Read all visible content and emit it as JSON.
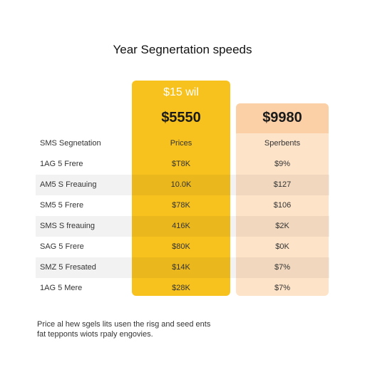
{
  "chart_data": {
    "type": "table",
    "title": "Year Segnertation speeds",
    "columns": [
      {
        "top_label": "$15 wil",
        "price": "$5550",
        "header": "Prices",
        "color": "#f7c21e"
      },
      {
        "top_label": "",
        "price": "$9980",
        "header": "Sperbents",
        "color": "#fde3c8"
      }
    ],
    "row_header_label": "SMS Segnetation",
    "rows": [
      {
        "label": "1AG 5 Frere",
        "values": [
          "$T8K",
          "$9%"
        ]
      },
      {
        "label": "AM5 S Freauing",
        "values": [
          "10.0K",
          "$127"
        ]
      },
      {
        "label": "SM5 5 Frere",
        "values": [
          "$78K",
          "$106"
        ]
      },
      {
        "label": "SMS S freauing",
        "values": [
          "416K",
          "$2K"
        ]
      },
      {
        "label": "SAG 5 Frere",
        "values": [
          "$80K",
          "$0K"
        ]
      },
      {
        "label": "SMZ 5 Fresated",
        "values": [
          "$14K",
          "$7%"
        ]
      },
      {
        "label": "1AG 5 Mere",
        "values": [
          "$28K",
          "$7%"
        ]
      }
    ],
    "footnote": [
      "Price al hew sgels lits usen the risg and seed ents",
      "fat tepponts wiots rpaly engovies."
    ]
  }
}
